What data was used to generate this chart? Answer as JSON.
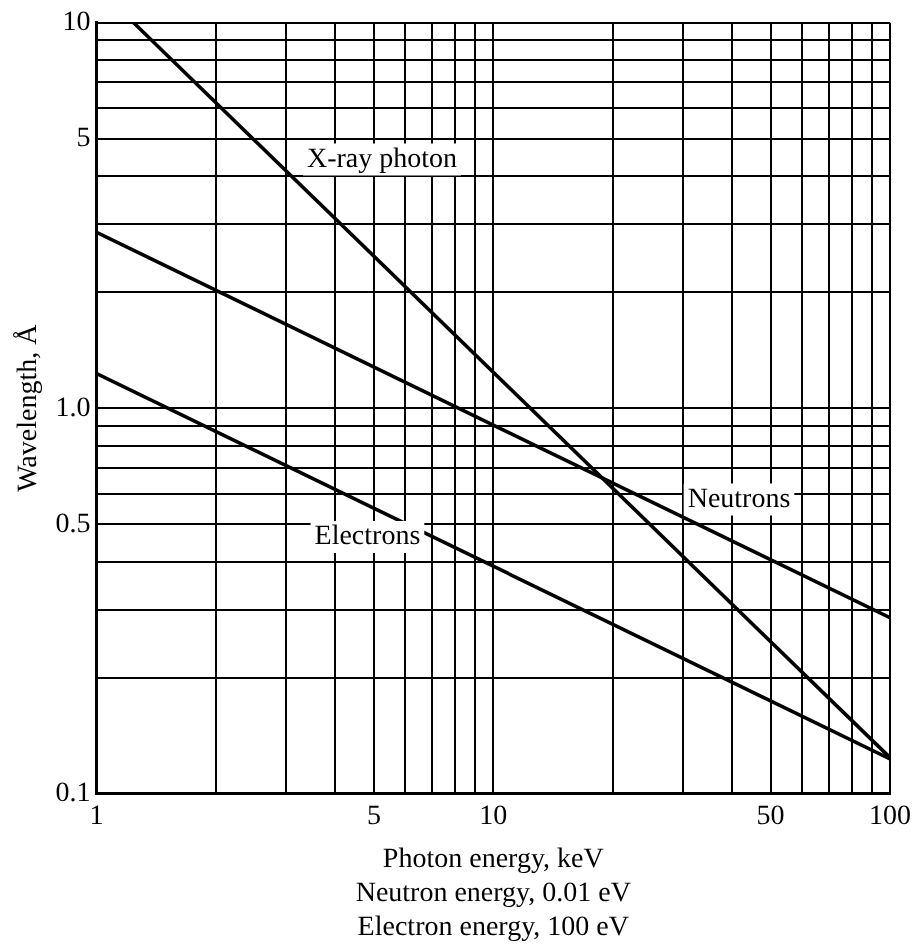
{
  "chart_data": {
    "type": "line",
    "xlabel": "Photon energy, keV\nNeutron energy, 0.01 eV\nElectron energy, 100 eV",
    "ylabel": "Wavelength, Å",
    "log": "xy",
    "grid": true,
    "legend": false,
    "marker": "none",
    "line_style": "solid",
    "xlim": [
      1,
      100
    ],
    "ylim": [
      0.1,
      10
    ],
    "xticks": [
      1,
      {
        "value": 2,
        "label": null
      },
      {
        "value": 3,
        "label": null
      },
      {
        "value": 4,
        "label": null
      },
      5,
      {
        "value": 6,
        "label": null
      },
      {
        "value": 7,
        "label": null
      },
      {
        "value": 8,
        "label": null
      },
      {
        "value": 9,
        "label": null
      },
      10,
      {
        "value": 20,
        "label": null
      },
      {
        "value": 30,
        "label": null
      },
      {
        "value": 40,
        "label": null
      },
      50,
      {
        "value": 60,
        "label": null
      },
      {
        "value": 70,
        "label": null
      },
      {
        "value": 80,
        "label": null
      },
      {
        "value": 90,
        "label": null
      },
      100
    ],
    "yticks": [
      0.1,
      {
        "value": 0.2,
        "label": null
      },
      {
        "value": 0.3,
        "label": null
      },
      {
        "value": 0.4,
        "label": null
      },
      0.5,
      {
        "value": 0.6,
        "label": null
      },
      {
        "value": 0.7,
        "label": null
      },
      {
        "value": 0.8,
        "label": null
      },
      {
        "value": 0.9,
        "label": null
      },
      {
        "value": 1,
        "label": "1.0"
      },
      {
        "value": 2,
        "label": null
      },
      {
        "value": 3,
        "label": null
      },
      {
        "value": 4,
        "label": null
      },
      5,
      {
        "value": 6,
        "label": null
      },
      {
        "value": 7,
        "label": null
      },
      {
        "value": 8,
        "label": null
      },
      {
        "value": 9,
        "label": null
      },
      10
    ],
    "series": [
      {
        "name": "X-ray photon",
        "color": "#000000",
        "x": [
          1.24,
          100
        ],
        "values": [
          10,
          0.124
        ]
      },
      {
        "name": "Neutrons",
        "color": "#000000",
        "x": [
          1,
          100
        ],
        "values": [
          2.86,
          0.286
        ]
      },
      {
        "name": "Electrons",
        "color": "#000000",
        "x": [
          1,
          100
        ],
        "values": [
          1.23,
          0.123
        ]
      }
    ]
  }
}
